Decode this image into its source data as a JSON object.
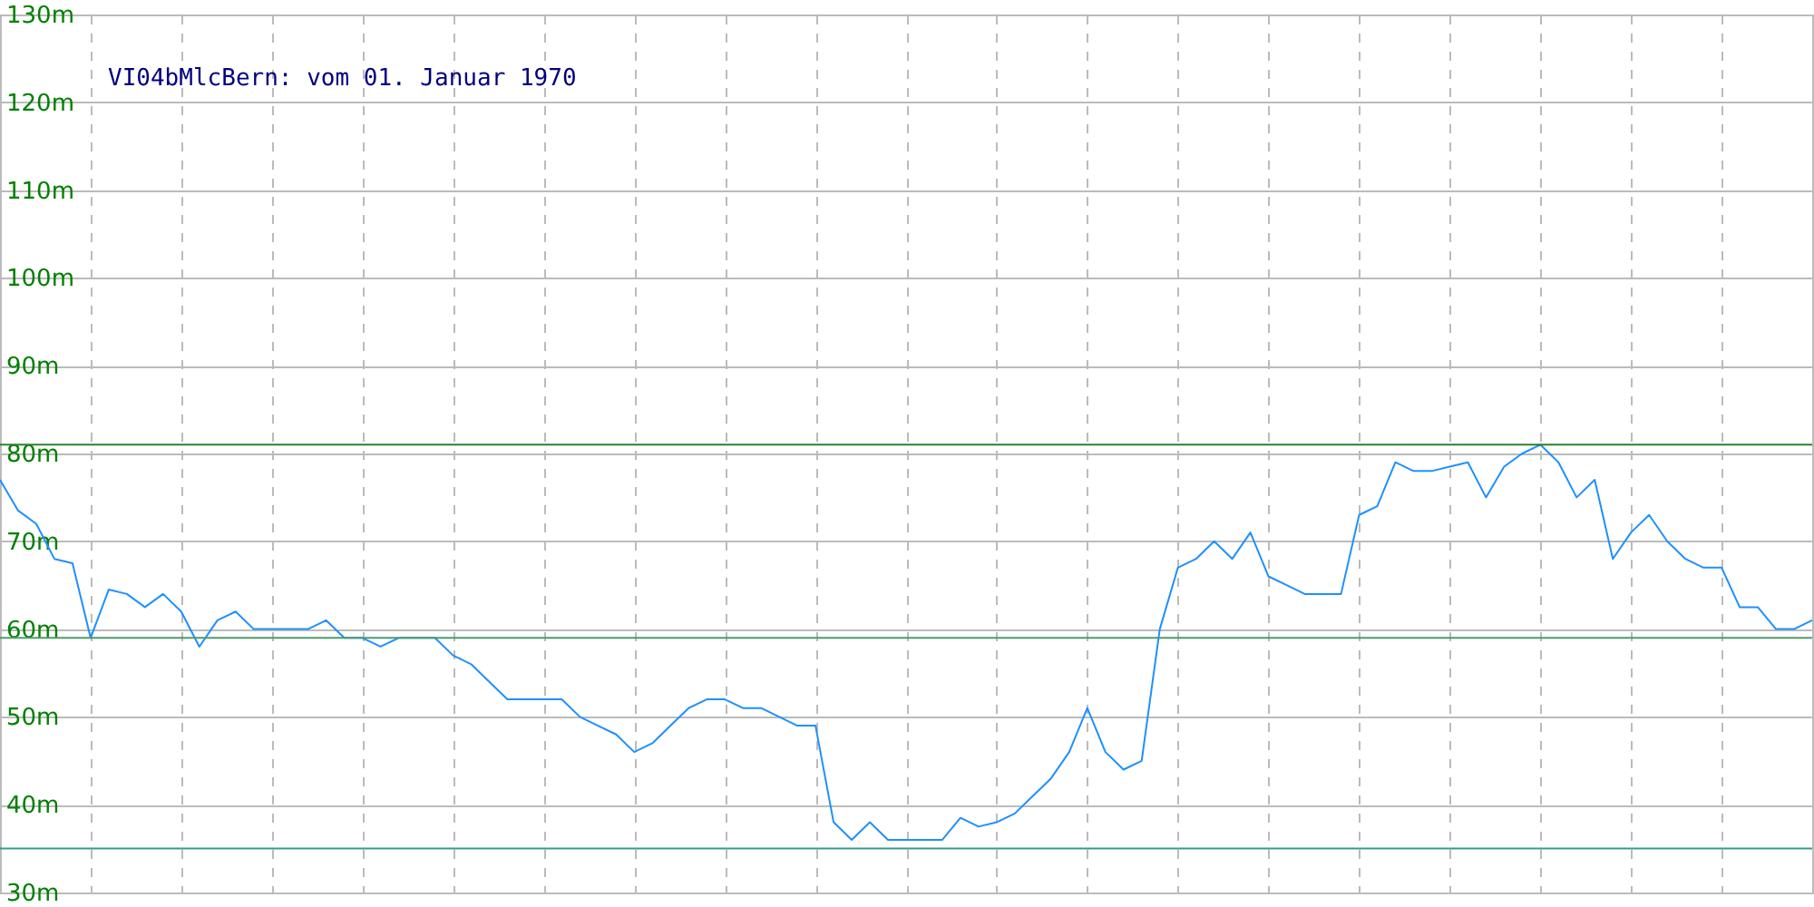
{
  "chart_data": {
    "type": "line",
    "title": "VI04bMlcBern: vom 01. Januar 1970",
    "categories": [
      null,
      null,
      null,
      null,
      null,
      null,
      null,
      null,
      null,
      null,
      null,
      null,
      null,
      null,
      null,
      null,
      null,
      null,
      null,
      null,
      null,
      null,
      null,
      null,
      null,
      null,
      null,
      null,
      null,
      null,
      null,
      null,
      null,
      null,
      null,
      null,
      null,
      null,
      null,
      null,
      null,
      null,
      null,
      null,
      null,
      null,
      null,
      null,
      null,
      null,
      null,
      null,
      null,
      null,
      null,
      null,
      null,
      null,
      null,
      null,
      null,
      null,
      null,
      null,
      null,
      null,
      null,
      null,
      null,
      null,
      null,
      null,
      null,
      null,
      null,
      null,
      null,
      null,
      null,
      null,
      null,
      null,
      null,
      null,
      null,
      null,
      null,
      null,
      null,
      null,
      null,
      null,
      null,
      null,
      null,
      null,
      null,
      null,
      null,
      null,
      null
    ],
    "ylim": [
      30,
      130
    ],
    "yticks": [
      {
        "value": 30,
        "label": "30m"
      },
      {
        "value": 40,
        "label": "40m"
      },
      {
        "value": 50,
        "label": "50m"
      },
      {
        "value": 60,
        "label": "60m"
      },
      {
        "value": 70,
        "label": "70m"
      },
      {
        "value": 80,
        "label": "80m"
      },
      {
        "value": 90,
        "label": "90m"
      },
      {
        "value": 100,
        "label": "100m"
      },
      {
        "value": 110,
        "label": "110m"
      },
      {
        "value": 120,
        "label": "120m"
      },
      {
        "value": 130,
        "label": "130m"
      }
    ],
    "tick_labels": "y",
    "grid": true,
    "ref_lines": [
      {
        "axis": "y",
        "value": 81,
        "color": "#2f7f2f"
      },
      {
        "axis": "y",
        "value": 59,
        "color": "#4c9c6c"
      },
      {
        "axis": "y",
        "value": 35,
        "color": "#3a9a8a"
      }
    ],
    "series": [
      {
        "color": "#1e90ff",
        "values": [
          77,
          73.5,
          72,
          68,
          67.5,
          59,
          64.5,
          64,
          62.5,
          64,
          62,
          58,
          61,
          62,
          60,
          60,
          60,
          60,
          61,
          59,
          59,
          58,
          59,
          59,
          59,
          57,
          56,
          54,
          52,
          52,
          52,
          52,
          50,
          49,
          48,
          46,
          47,
          49,
          51,
          52,
          52,
          51,
          51,
          50,
          49,
          49,
          38,
          36,
          38,
          36,
          36,
          36,
          36,
          38.5,
          37.5,
          38,
          39,
          41,
          43,
          46,
          51,
          46,
          44,
          45,
          60,
          67,
          68,
          70,
          68,
          71,
          66,
          65,
          64,
          64,
          64,
          73,
          74,
          79,
          78,
          78,
          78.5,
          79,
          75,
          78.5,
          80,
          81,
          79,
          75,
          77,
          68,
          71,
          73,
          70,
          68,
          67,
          67,
          62.5,
          62.5,
          60,
          60,
          61
        ]
      }
    ]
  }
}
